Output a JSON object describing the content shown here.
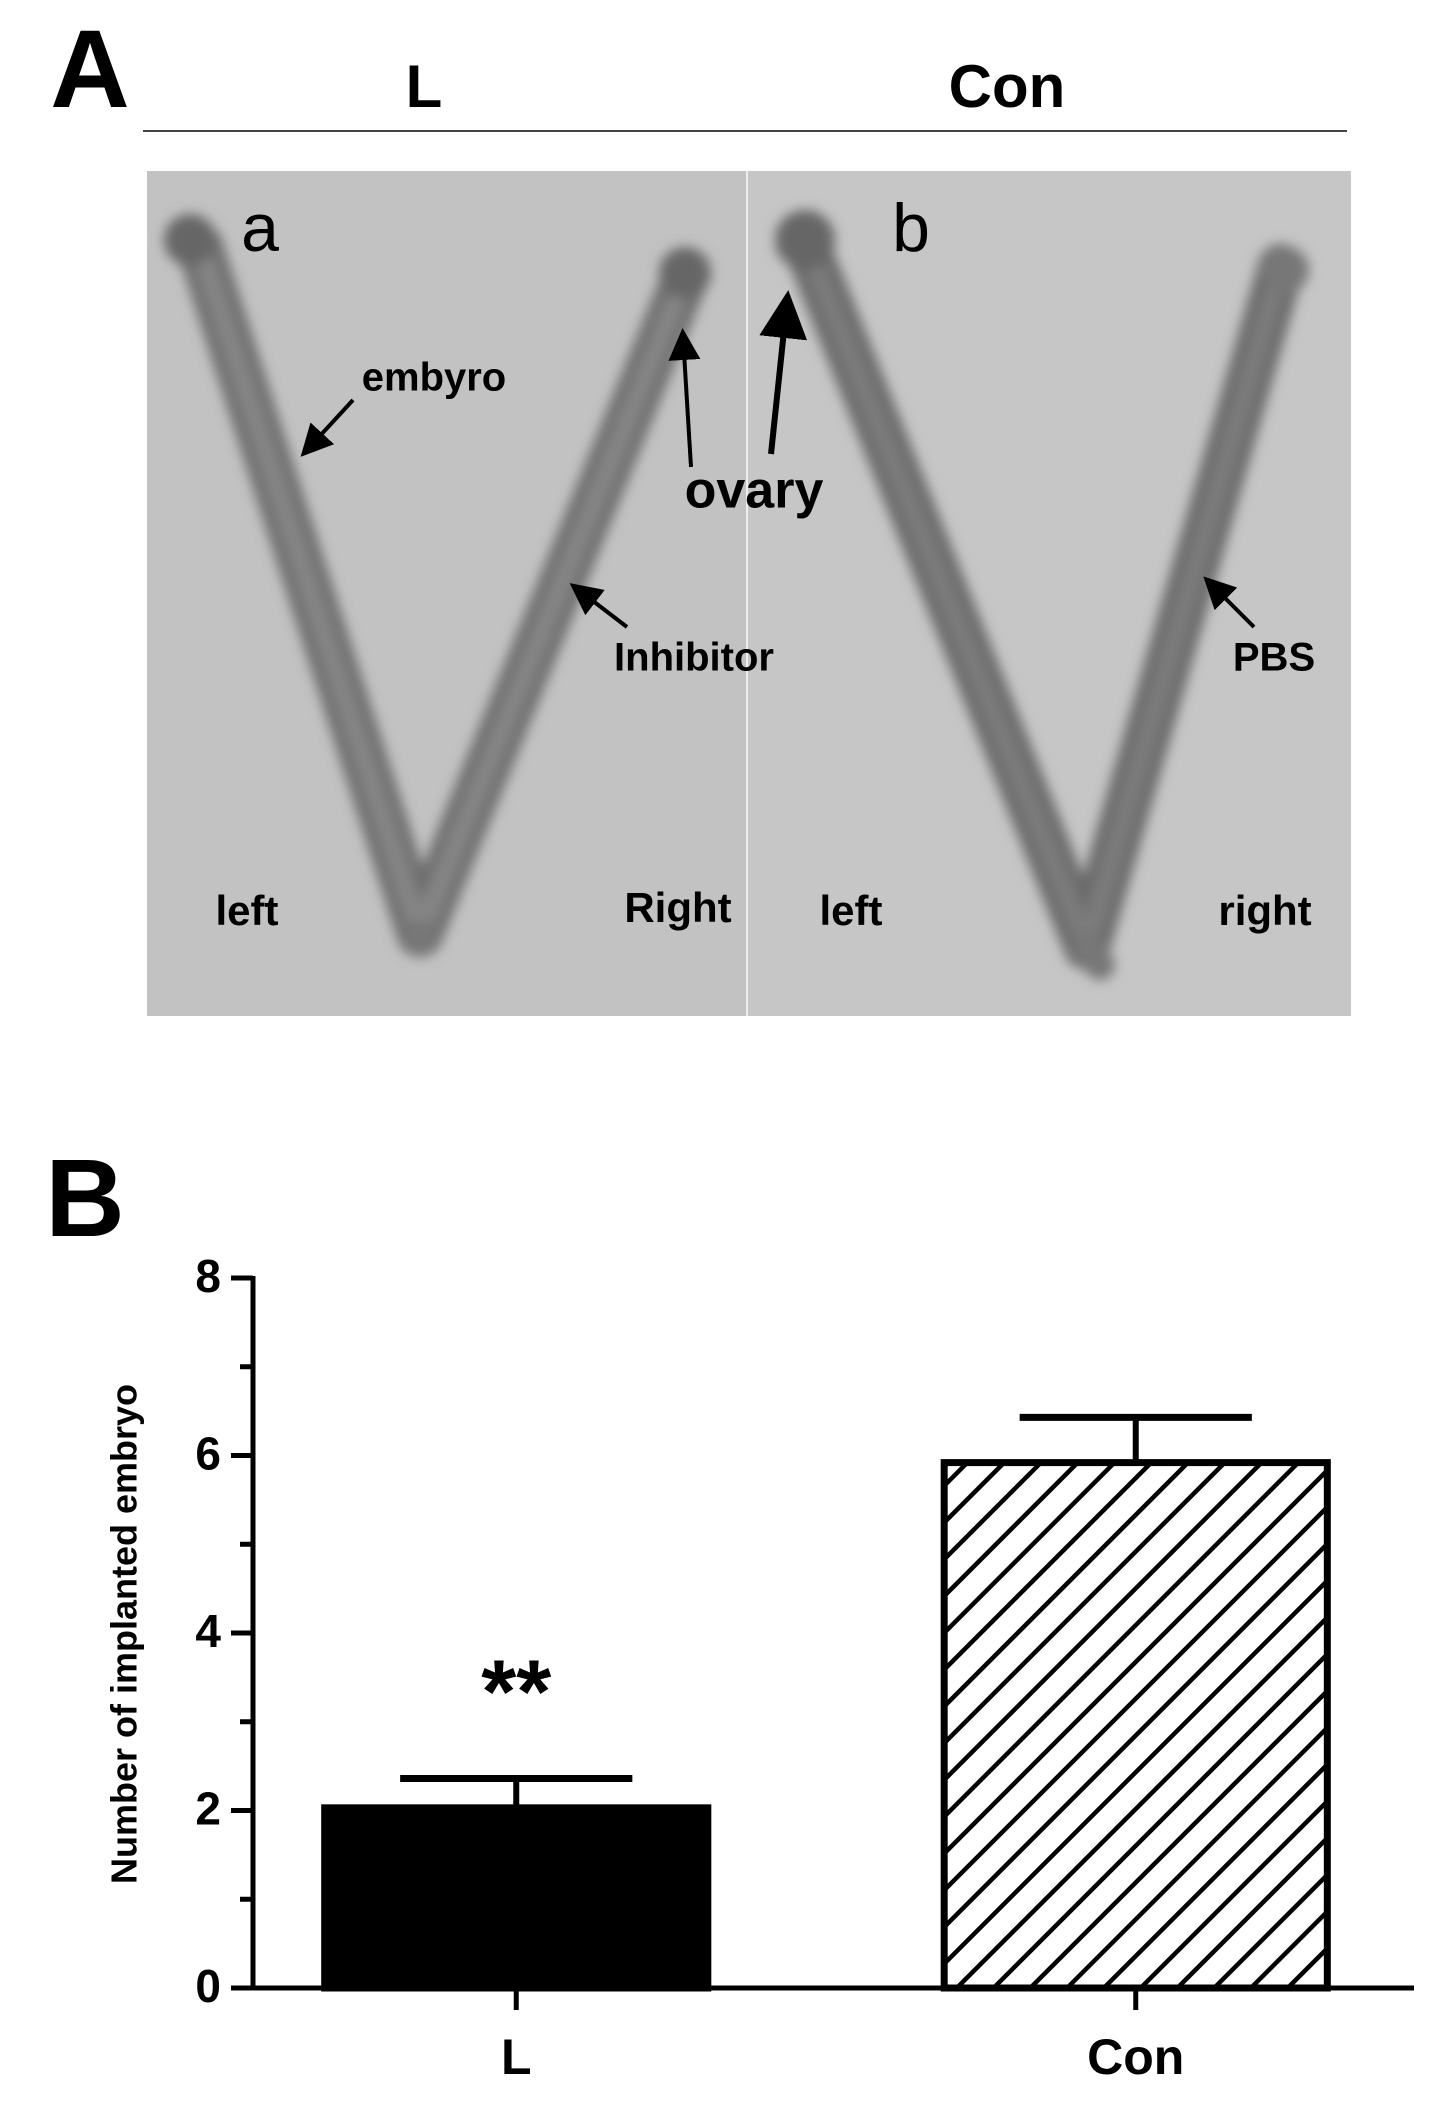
{
  "panel_a": {
    "label": "A",
    "groups": [
      "L",
      "Con"
    ],
    "photo_labels": [
      "a",
      "b"
    ],
    "annotations": {
      "embryo": "embyro",
      "ovary": "ovary",
      "inhibitor": "Inhibitor",
      "pbs": "PBS"
    },
    "sides": [
      "left",
      "Right",
      "left",
      "right"
    ]
  },
  "chart_data": {
    "type": "bar",
    "panel_label": "B",
    "ylabel": "Number of implanted embryo",
    "categories": [
      "L",
      "Con"
    ],
    "values": [
      2.03,
      5.92
    ],
    "errors": [
      0.33,
      0.51
    ],
    "colors": [
      "#000000",
      "#ffffff"
    ],
    "hatch": [
      false,
      true
    ],
    "annotations": [
      "**",
      null
    ],
    "ylim": [
      0,
      8
    ],
    "yticks": [
      0,
      2,
      4,
      6,
      8
    ],
    "minor_yticks": [
      1,
      3,
      5,
      7
    ],
    "grid": false
  }
}
